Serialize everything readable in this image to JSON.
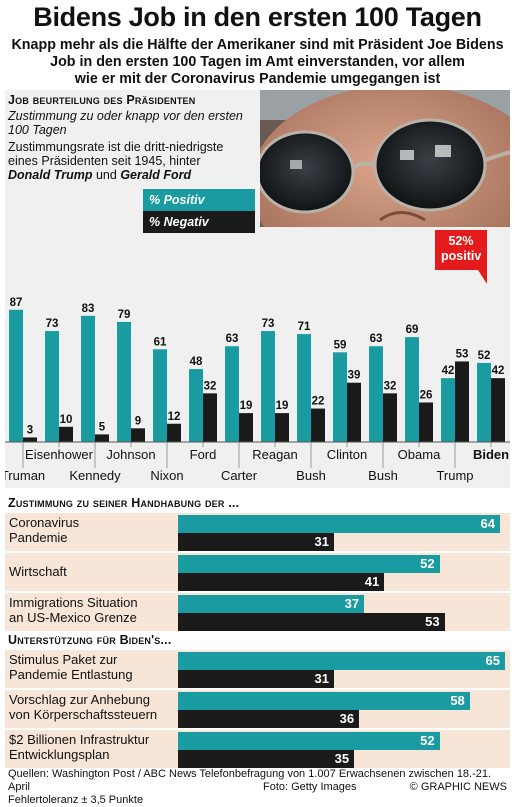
{
  "title": "Bidens Job in den ersten 100 Tagen",
  "subtitle_lines": [
    "Knapp mehr als die Hälfte der Amerikaner sind mit Präsident Joe Bidens",
    "Job in den ersten 100 Tagen im Amt einverstanden, vor allem",
    "wie er mit der Coronavirus Pandemie umgegangen ist"
  ],
  "top_section": {
    "heading": "Job beurteilung des Präsidenten",
    "note_lines": [
      "Zustimmung zu oder knapp vor den ersten",
      "100 Tagen"
    ],
    "note2_line1": "Zustimmungsrate ist die dritt-niedrigste",
    "note2_line2": "eines Präsidenten seit 1945, hinter",
    "note2_trump": "Donald Trump",
    "note2_und": " und ",
    "note2_ford": "Gerald Ford",
    "legend_positive": "% Positiv",
    "legend_negative": "% Negativ",
    "callout": "52% positiv"
  },
  "colors": {
    "positive": "#1a9ba1",
    "negative": "#1a1a1a",
    "accent": "#e51b1b",
    "row_bg": "#f7e6d8"
  },
  "chart_data": [
    {
      "type": "bar",
      "categories": [
        "Truman",
        "Eisenhower",
        "Kennedy",
        "Johnson",
        "Nixon",
        "Ford",
        "Carter",
        "Reagan",
        "Bush",
        "Clinton",
        "Bush",
        "Obama",
        "Trump",
        "Biden"
      ],
      "series": [
        {
          "name": "% Positiv",
          "values": [
            87,
            73,
            83,
            79,
            61,
            48,
            63,
            73,
            71,
            59,
            63,
            69,
            42,
            52
          ]
        },
        {
          "name": "% Negativ",
          "values": [
            3,
            10,
            5,
            9,
            12,
            32,
            19,
            19,
            22,
            39,
            32,
            26,
            53,
            42
          ]
        }
      ],
      "ylim": [
        0,
        100
      ]
    },
    {
      "type": "bar",
      "title": "Zustimmung zu seiner Handhabung der ...",
      "categories": [
        "Coronavirus Pandemie",
        "Wirtschaft",
        "Immigrations Situation an US-Mexico Grenze"
      ],
      "series": [
        {
          "name": "% Positiv",
          "values": [
            64,
            52,
            37
          ]
        },
        {
          "name": "% Negativ",
          "values": [
            31,
            41,
            53
          ]
        }
      ]
    },
    {
      "type": "bar",
      "title": "Unterstützung für Biden's...",
      "categories": [
        "Stimulus Paket zur Pandemie Entlastung",
        "Vorschlag zur Anhebung von Körperschaftssteuern",
        "$2 Billionen Infrastruktur Entwicklungsplan"
      ],
      "series": [
        {
          "name": "% Positiv",
          "values": [
            65,
            58,
            52
          ]
        },
        {
          "name": "% Negativ",
          "values": [
            31,
            36,
            35
          ]
        }
      ]
    }
  ],
  "section2": {
    "heading": "Zustimmung zu seiner Handhabung der ...",
    "rows": [
      {
        "label_lines": [
          "Coronavirus",
          "Pandemie"
        ],
        "pos": 64,
        "neg": 31
      },
      {
        "label_lines": [
          "Wirtschaft"
        ],
        "pos": 52,
        "neg": 41
      },
      {
        "label_lines": [
          "Immigrations Situation",
          "an US-Mexico Grenze"
        ],
        "pos": 37,
        "neg": 53
      }
    ]
  },
  "section3": {
    "heading": "Unterstützung für Biden's...",
    "rows": [
      {
        "label_lines": [
          "Stimulus Paket zur",
          "Pandemie Entlastung"
        ],
        "pos": 65,
        "neg": 31
      },
      {
        "label_lines": [
          "Vorschlag zur Anhebung",
          "von Körperschaftssteuern"
        ],
        "pos": 58,
        "neg": 36
      },
      {
        "label_lines": [
          "$2 Billionen Infrastruktur",
          "Entwicklungsplan"
        ],
        "pos": 52,
        "neg": 35
      }
    ]
  },
  "footer": {
    "sources": "Quellen: Washington Post / ABC News Telefonbefragung von 1.007 Erwachsenen zwischen 18.-21. April",
    "margin": "Fehlertoleranz ± 3,5 Punkte",
    "photo_credit": "Foto: Getty Images",
    "brand": "© GRAPHIC NEWS"
  }
}
